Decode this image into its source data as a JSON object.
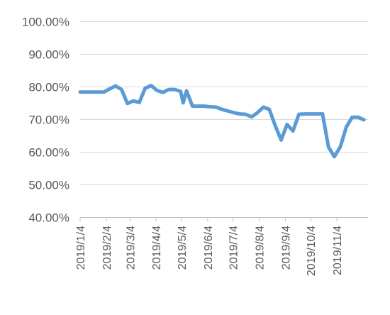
{
  "chart_data": {
    "type": "line",
    "title": "",
    "xlabel": "",
    "ylabel": "",
    "ylim": [
      0.4,
      1.0
    ],
    "y_tick_labels": [
      "40.00%",
      "50.00%",
      "60.00%",
      "70.00%",
      "80.00%",
      "90.00%",
      "100.00%"
    ],
    "y_tick_values": [
      0.4,
      0.5,
      0.6,
      0.7,
      0.8,
      0.9,
      1.0
    ],
    "x_tick_labels": [
      "2019/1/4",
      "2019/2/4",
      "2019/3/4",
      "2019/4/4",
      "2019/5/4",
      "2019/6/4",
      "2019/7/4",
      "2019/8/4",
      "2019/9/4",
      "2019/10/4",
      "2019/11/4"
    ],
    "xlim": [
      "2019-01-04",
      "2019-12-10"
    ],
    "grid": true,
    "colors": {
      "line": "#5b9bd5",
      "grid": "#d9d9d9",
      "axis": "#bfbfbf",
      "text": "#595959"
    },
    "series": [
      {
        "x": [
          "2019-01-04",
          "2019-01-11",
          "2019-01-18",
          "2019-01-25",
          "2019-02-01",
          "2019-02-08",
          "2019-02-15",
          "2019-02-22",
          "2019-03-01",
          "2019-03-08",
          "2019-03-15",
          "2019-03-22",
          "2019-03-29",
          "2019-04-05",
          "2019-04-12",
          "2019-04-19",
          "2019-04-26",
          "2019-05-03",
          "2019-05-06",
          "2019-05-10",
          "2019-05-17",
          "2019-05-24",
          "2019-05-31",
          "2019-06-07",
          "2019-06-14",
          "2019-06-21",
          "2019-06-28",
          "2019-07-05",
          "2019-07-12",
          "2019-07-19",
          "2019-07-26",
          "2019-08-02",
          "2019-08-09",
          "2019-08-16",
          "2019-08-23",
          "2019-08-30",
          "2019-09-06",
          "2019-09-13",
          "2019-09-20",
          "2019-09-27",
          "2019-10-11",
          "2019-10-18",
          "2019-10-25",
          "2019-11-01",
          "2019-11-08",
          "2019-11-15",
          "2019-11-22",
          "2019-11-29",
          "2019-12-06"
        ],
        "values": [
          0.783,
          0.783,
          0.783,
          0.783,
          0.783,
          0.793,
          0.802,
          0.791,
          0.748,
          0.756,
          0.751,
          0.795,
          0.803,
          0.788,
          0.782,
          0.791,
          0.791,
          0.785,
          0.75,
          0.787,
          0.74,
          0.74,
          0.74,
          0.738,
          0.737,
          0.73,
          0.725,
          0.72,
          0.716,
          0.715,
          0.707,
          0.72,
          0.737,
          0.73,
          0.68,
          0.636,
          0.684,
          0.664,
          0.715,
          0.716,
          0.716,
          0.716,
          0.615,
          0.585,
          0.615,
          0.675,
          0.706,
          0.706,
          0.698
        ]
      }
    ]
  }
}
